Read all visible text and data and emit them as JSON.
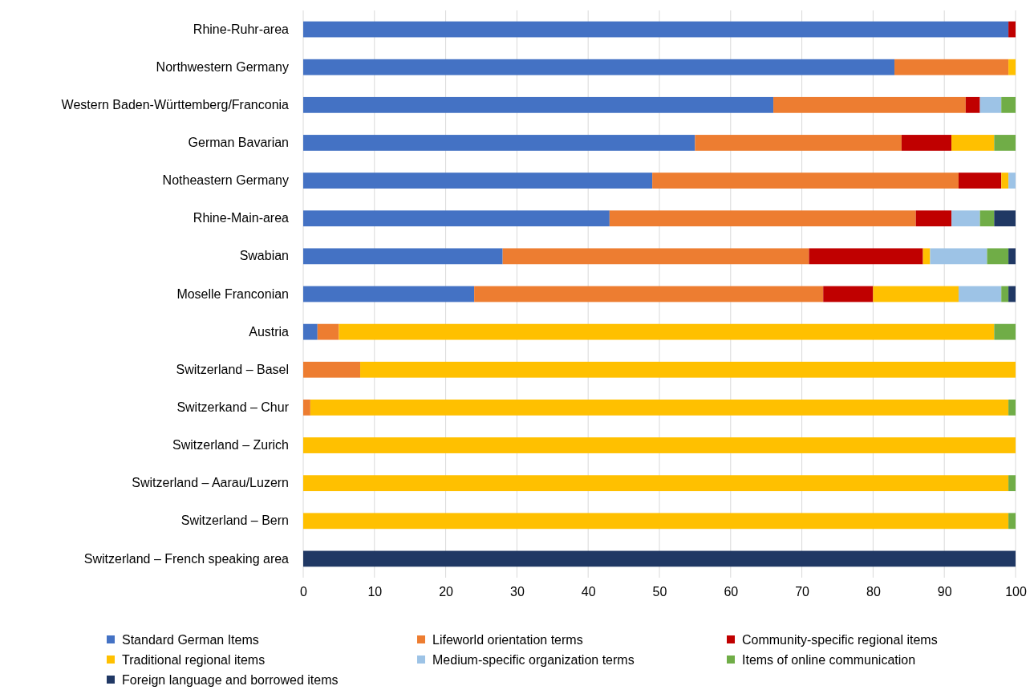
{
  "chart_data": {
    "type": "bar",
    "orientation": "horizontal",
    "stacked": true,
    "categories": [
      "Rhine-Ruhr-area",
      "Northwestern Germany",
      "Western Baden-Württemberg/Franconia",
      "German Bavarian",
      "Notheastern Germany",
      "Rhine-Main-area",
      "Swabian",
      "Moselle Franconian",
      "Austria",
      "Switzerland – Basel",
      "Switzerkand – Chur",
      "Switzerland – Zurich",
      "Switzerland – Aarau/Luzern",
      "Switzerland – Bern",
      "Switzerland – French speaking area"
    ],
    "series": [
      {
        "name": "Standard German Items",
        "color": "#4472c4",
        "values": [
          99,
          83,
          66,
          55,
          49,
          43,
          28,
          24,
          2,
          0,
          0,
          0,
          0,
          0,
          0
        ]
      },
      {
        "name": "Lifeworld orientation terms",
        "color": "#ed7d31",
        "values": [
          0,
          16,
          27,
          29,
          43,
          43,
          43,
          49,
          3,
          8,
          1,
          0,
          0,
          0,
          0
        ]
      },
      {
        "name": "Community-specific regional items",
        "color": "#c00000",
        "values": [
          1,
          0,
          2,
          7,
          6,
          5,
          16,
          7,
          0,
          0,
          0,
          0,
          0,
          0,
          0
        ]
      },
      {
        "name": "Traditional regional items",
        "color": "#ffc000",
        "values": [
          0,
          1,
          0,
          6,
          1,
          0,
          1,
          12,
          92,
          92,
          98,
          100,
          99,
          99,
          0
        ]
      },
      {
        "name": "Medium-specific organization terms",
        "color": "#9dc3e6",
        "values": [
          0,
          0,
          3,
          0,
          1,
          4,
          8,
          6,
          0,
          0,
          0,
          0,
          0,
          0,
          0
        ]
      },
      {
        "name": "Items of online communication",
        "color": "#70ad47",
        "values": [
          0,
          0,
          2,
          3,
          0,
          2,
          3,
          1,
          3,
          0,
          1,
          0,
          1,
          1,
          0
        ]
      },
      {
        "name": "Foreign language and borrowed items",
        "color": "#203864",
        "values": [
          0,
          0,
          0,
          0,
          0,
          3,
          1,
          1,
          0,
          0,
          0,
          0,
          0,
          0,
          100
        ]
      }
    ],
    "xlim": [
      0,
      100
    ],
    "xticks": [
      0,
      10,
      20,
      30,
      40,
      50,
      60,
      70,
      80,
      90,
      100
    ],
    "grid": "x",
    "legend": "bottom"
  }
}
